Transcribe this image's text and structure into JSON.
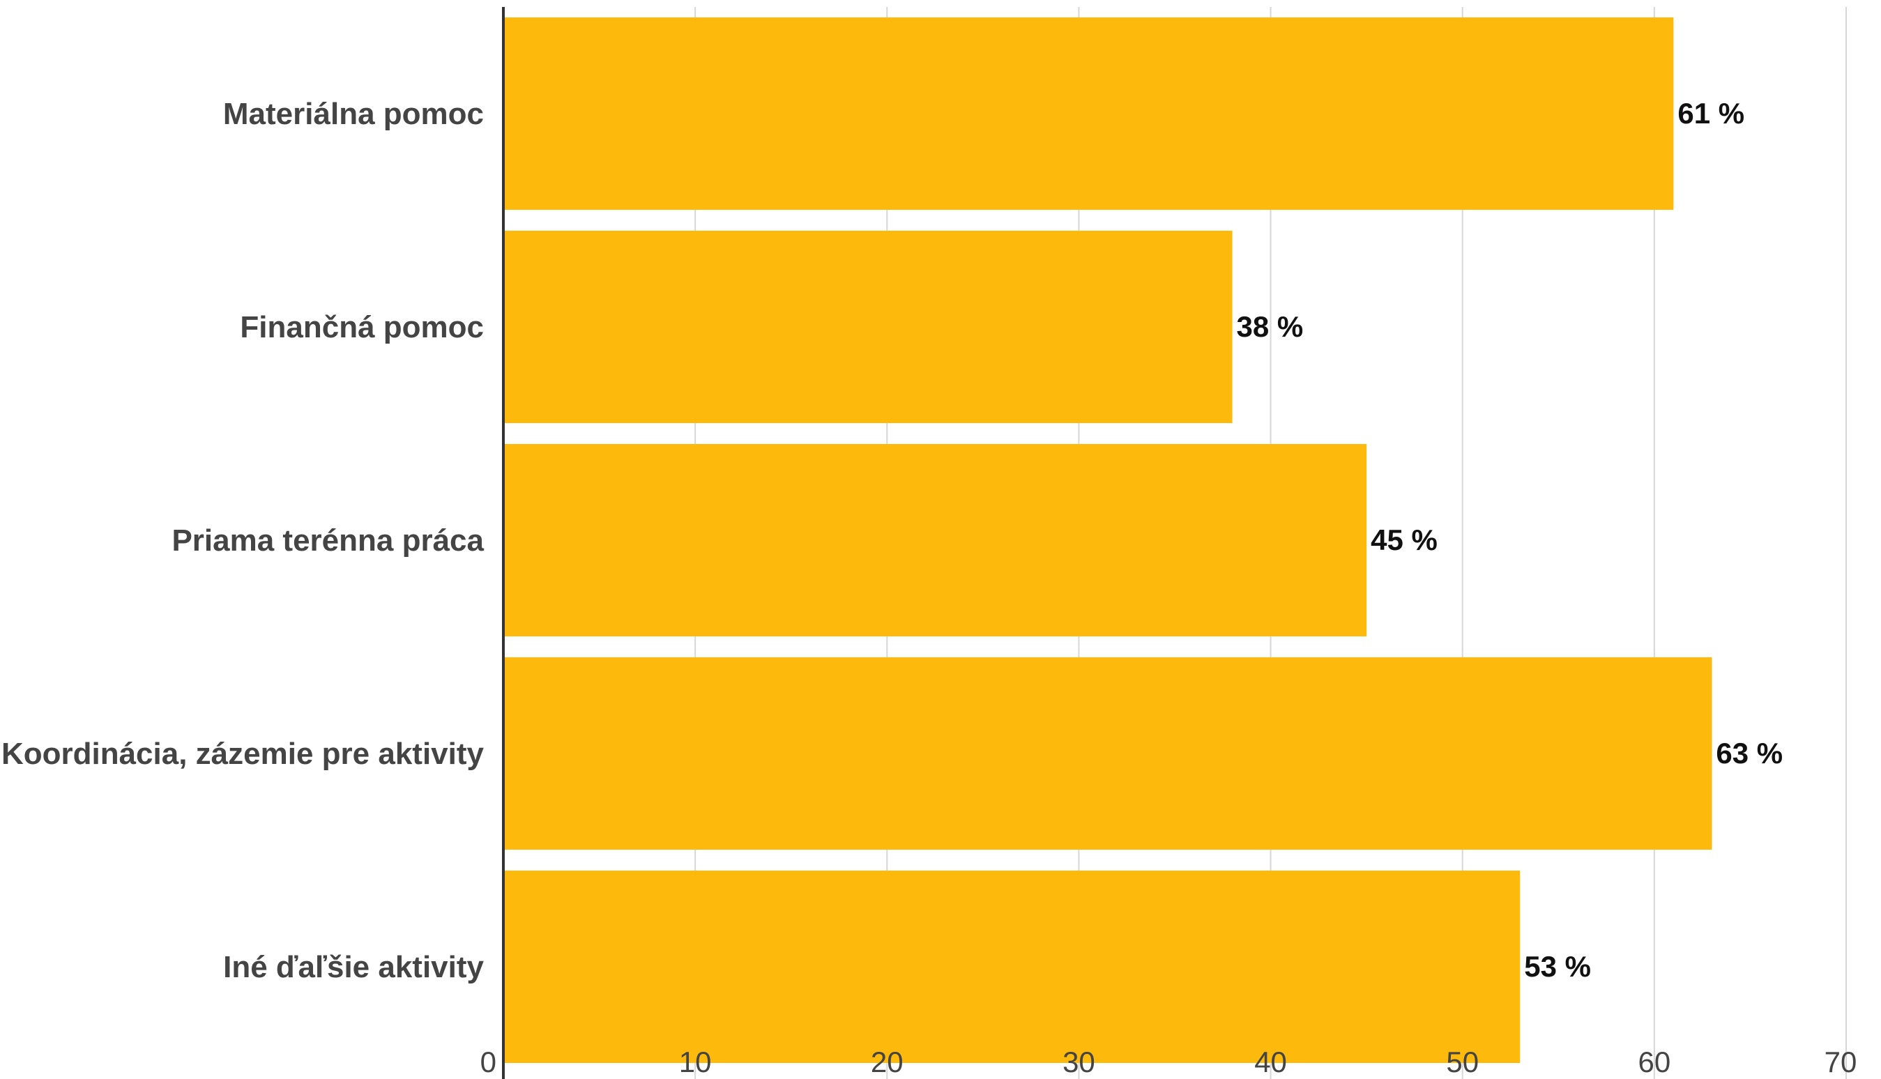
{
  "chart_data": {
    "type": "bar",
    "orientation": "horizontal",
    "title": "",
    "xlabel": "",
    "ylabel": "",
    "categories": [
      "Materiálna pomoc",
      "Finančná pomoc",
      "Priama terénna práca",
      "Koordinácia, zázemie pre aktivity",
      "Iné ďaľšie aktivity"
    ],
    "values": [
      61,
      38,
      45,
      63,
      53
    ],
    "value_labels": [
      "61 %",
      "38 %",
      "45 %",
      "63 %",
      "53 %"
    ],
    "xlim": [
      0,
      70
    ],
    "xticks": [
      0,
      10,
      20,
      30,
      40,
      50,
      60,
      70
    ],
    "xtick_labels": [
      "0",
      "10",
      "20",
      "30",
      "40",
      "50",
      "60",
      "70"
    ],
    "grid": true,
    "legend": "none",
    "bar_color": "#FDB90C"
  }
}
